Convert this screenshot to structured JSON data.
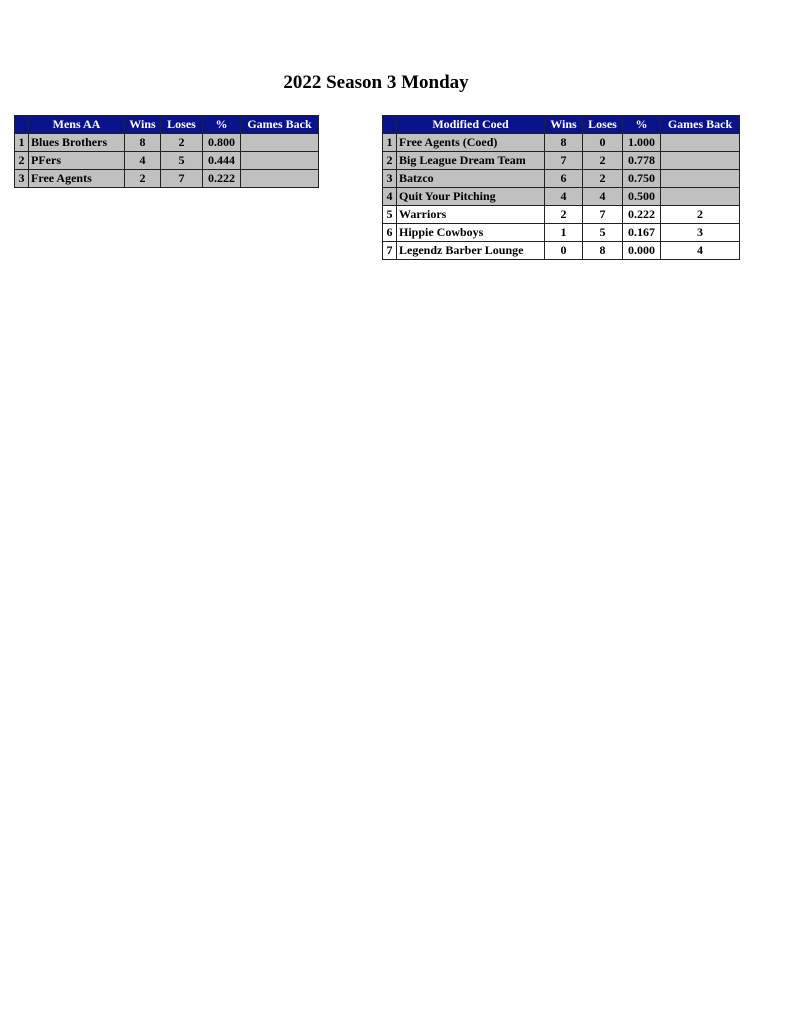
{
  "title": "2022 Season 3 Monday",
  "tables": [
    {
      "division": "Mens AA",
      "headers": [
        "Wins",
        "Loses",
        "%",
        "Games Back"
      ],
      "rows": [
        {
          "rank": "1",
          "team": "Blues Brothers",
          "wins": "8",
          "loses": "2",
          "pct": "0.800",
          "gb": "",
          "highlight": "gray"
        },
        {
          "rank": "2",
          "team": "PFers",
          "wins": "4",
          "loses": "5",
          "pct": "0.444",
          "gb": "",
          "highlight": "gray"
        },
        {
          "rank": "3",
          "team": "Free Agents",
          "wins": "2",
          "loses": "7",
          "pct": "0.222",
          "gb": "",
          "highlight": "gray"
        }
      ]
    },
    {
      "division": "Modified Coed",
      "headers": [
        "Wins",
        "Loses",
        "%",
        "Games Back"
      ],
      "rows": [
        {
          "rank": "1",
          "team": "Free Agents (Coed)",
          "wins": "8",
          "loses": "0",
          "pct": "1.000",
          "gb": "",
          "highlight": "gray"
        },
        {
          "rank": "2",
          "team": "Big League Dream Team",
          "wins": "7",
          "loses": "2",
          "pct": "0.778",
          "gb": "",
          "highlight": "gray"
        },
        {
          "rank": "3",
          "team": "Batzco",
          "wins": "6",
          "loses": "2",
          "pct": "0.750",
          "gb": "",
          "highlight": "gray"
        },
        {
          "rank": "4",
          "team": "Quit Your Pitching",
          "wins": "4",
          "loses": "4",
          "pct": "0.500",
          "gb": "",
          "highlight": "gray"
        },
        {
          "rank": "5",
          "team": "Warriors",
          "wins": "2",
          "loses": "7",
          "pct": "0.222",
          "gb": "2",
          "highlight": "white"
        },
        {
          "rank": "6",
          "team": "Hippie Cowboys",
          "wins": "1",
          "loses": "5",
          "pct": "0.167",
          "gb": "3",
          "highlight": "white"
        },
        {
          "rank": "7",
          "team": "Legendz Barber Lounge",
          "wins": "0",
          "loses": "8",
          "pct": "0.000",
          "gb": "4",
          "highlight": "white"
        }
      ]
    }
  ],
  "colors": {
    "header_bg": "#0a128c",
    "header_text": "#ffffff",
    "playoff_row": "#c0c0c0"
  }
}
